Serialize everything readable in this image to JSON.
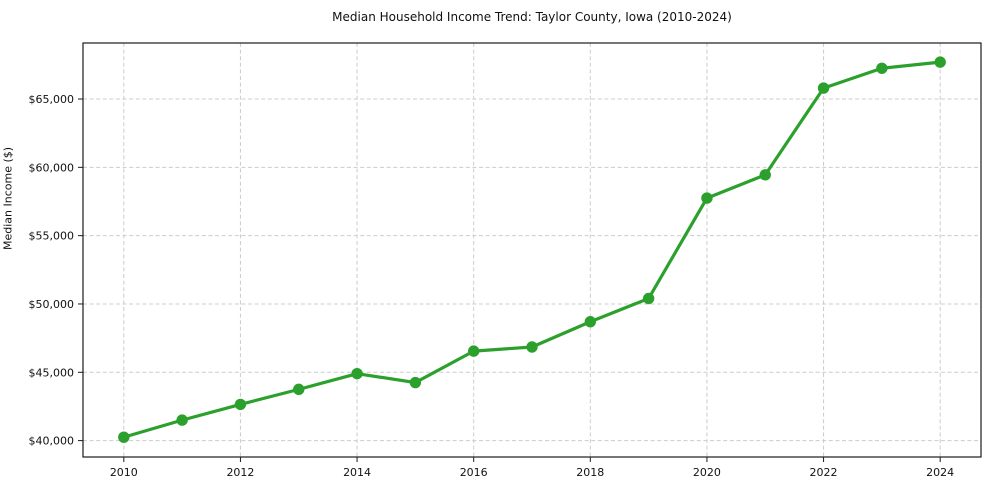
{
  "chart_data": {
    "type": "line",
    "title": "Median Household Income Trend: Taylor County, Iowa (2010-2024)",
    "xlabel": "",
    "ylabel": "Median Income ($)",
    "x": [
      2010,
      2011,
      2012,
      2013,
      2014,
      2015,
      2016,
      2017,
      2018,
      2019,
      2020,
      2021,
      2022,
      2023,
      2024
    ],
    "series": [
      {
        "name": "Median Household Income",
        "values": [
          40250,
          41500,
          42650,
          43750,
          44900,
          44250,
          46550,
          46850,
          48700,
          50400,
          57750,
          59450,
          65800,
          67250,
          67700
        ]
      }
    ],
    "xlim": [
      2009.3,
      2024.7
    ],
    "ylim": [
      38800,
      69100
    ],
    "x_ticks": [
      2010,
      2012,
      2014,
      2016,
      2018,
      2020,
      2022,
      2024
    ],
    "x_tick_labels": [
      "2010",
      "2012",
      "2014",
      "2016",
      "2018",
      "2020",
      "2022",
      "2024"
    ],
    "y_ticks": [
      40000,
      45000,
      50000,
      55000,
      60000,
      65000
    ],
    "y_tick_labels": [
      "$40,000",
      "$45,000",
      "$50,000",
      "$55,000",
      "$60,000",
      "$65,000"
    ],
    "grid": true,
    "grid_style": "dashed",
    "legend": "none",
    "colors": {
      "line": "#2ca02c",
      "marker": "#2ca02c",
      "grid": "#cccccc",
      "frame": "#1a1a1a",
      "background": "#ffffff",
      "text": "#111111"
    }
  }
}
